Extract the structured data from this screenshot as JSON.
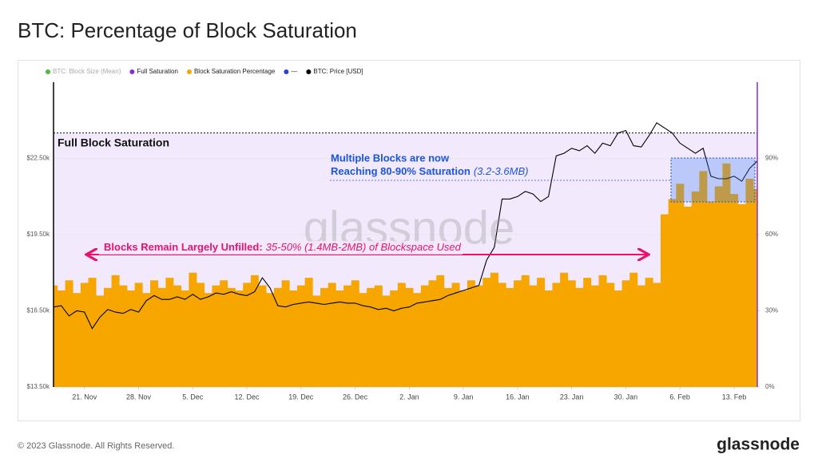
{
  "header": {
    "title": "BTC: Percentage of Block Saturation"
  },
  "footer": {
    "copyright": "© 2023 Glassnode. All Rights Reserved.",
    "logo": "glassnode"
  },
  "chart_data": {
    "type": "bar-line",
    "watermark": "glassnode",
    "legend": [
      {
        "name": "BTC: Block Size (Mean)",
        "color": "#4cbb3a",
        "muted": true
      },
      {
        "name": "Full Saturation",
        "color": "#8a2be2"
      },
      {
        "name": "Block Saturation Percentage",
        "color": "#f7a600"
      },
      {
        "name": "—",
        "color": "#2d3fd3"
      },
      {
        "name": "BTC: Price [USD]",
        "color": "#000000"
      }
    ],
    "xlim": [
      0,
      91
    ],
    "xticks": [
      {
        "value": 4,
        "label": "21. Nov"
      },
      {
        "value": 11,
        "label": "28. Nov"
      },
      {
        "value": 18,
        "label": "5. Dec"
      },
      {
        "value": 25,
        "label": "12. Dec"
      },
      {
        "value": 32,
        "label": "19. Dec"
      },
      {
        "value": 39,
        "label": "26. Dec"
      },
      {
        "value": 46,
        "label": "2. Jan"
      },
      {
        "value": 53,
        "label": "9. Jan"
      },
      {
        "value": 60,
        "label": "16. Jan"
      },
      {
        "value": 67,
        "label": "23. Jan"
      },
      {
        "value": 74,
        "label": "30. Jan"
      },
      {
        "value": 81,
        "label": "6. Feb"
      },
      {
        "value": 88,
        "label": "13. Feb"
      }
    ],
    "ylim": [
      13500,
      25500
    ],
    "yticks": [
      {
        "value": 13500,
        "label": "$13.50k"
      },
      {
        "value": 16500,
        "label": "$16.50k"
      },
      {
        "value": 19500,
        "label": "$19.50k"
      },
      {
        "value": 22500,
        "label": "$22.50k"
      }
    ],
    "y2lim": [
      0,
      120
    ],
    "y2ticks": [
      {
        "value": 0,
        "label": "0%"
      },
      {
        "value": 30,
        "label": "30%"
      },
      {
        "value": 60,
        "label": "60%"
      },
      {
        "value": 90,
        "label": "90%"
      }
    ],
    "grid": true,
    "x": [
      0,
      1,
      2,
      3,
      4,
      5,
      6,
      7,
      8,
      9,
      10,
      11,
      12,
      13,
      14,
      15,
      16,
      17,
      18,
      19,
      20,
      21,
      22,
      23,
      24,
      25,
      26,
      27,
      28,
      29,
      30,
      31,
      32,
      33,
      34,
      35,
      36,
      37,
      38,
      39,
      40,
      41,
      42,
      43,
      44,
      45,
      46,
      47,
      48,
      49,
      50,
      51,
      52,
      53,
      54,
      55,
      56,
      57,
      58,
      59,
      60,
      61,
      62,
      63,
      64,
      65,
      66,
      67,
      68,
      69,
      70,
      71,
      72,
      73,
      74,
      75,
      76,
      77,
      78,
      79,
      80,
      81,
      82,
      83,
      84,
      85,
      86,
      87,
      88,
      89,
      90,
      91
    ],
    "saturation": {
      "color": "#f7a600",
      "axis": "y2",
      "values": [
        40,
        38,
        42,
        37,
        41,
        43,
        36,
        39,
        44,
        40,
        38,
        41,
        37,
        42,
        39,
        43,
        40,
        38,
        45,
        41,
        37,
        40,
        42,
        39,
        38,
        41,
        44,
        40,
        37,
        39,
        42,
        38,
        40,
        43,
        36,
        39,
        41,
        38,
        40,
        42,
        37,
        39,
        40,
        36,
        38,
        41,
        39,
        37,
        40,
        42,
        44,
        39,
        41,
        38,
        42,
        40,
        43,
        45,
        41,
        39,
        42,
        44,
        40,
        43,
        38,
        41,
        45,
        42,
        39,
        43,
        40,
        44,
        41,
        38,
        42,
        45,
        40,
        43,
        41,
        68,
        74,
        80,
        71,
        77,
        85,
        73,
        79,
        88,
        76,
        72,
        82,
        78
      ]
    },
    "price": {
      "color": "#000000",
      "values": [
        16650,
        16700,
        16300,
        16500,
        16450,
        15800,
        16250,
        16550,
        16450,
        16400,
        16550,
        16450,
        16900,
        17100,
        16950,
        16950,
        17050,
        16950,
        17150,
        16950,
        17050,
        17200,
        17150,
        17250,
        17150,
        17100,
        17250,
        17800,
        17400,
        16700,
        16650,
        16750,
        16800,
        16850,
        16800,
        16750,
        16800,
        16850,
        16800,
        16800,
        16700,
        16650,
        16550,
        16600,
        16500,
        16600,
        16650,
        16800,
        16850,
        16900,
        16950,
        17100,
        17200,
        17300,
        17400,
        17500,
        18500,
        19000,
        20900,
        20900,
        21000,
        21200,
        21100,
        20800,
        21000,
        22600,
        22700,
        22900,
        22800,
        23000,
        22700,
        23100,
        23000,
        23500,
        23600,
        23000,
        22950,
        23400,
        23900,
        23700,
        23500,
        23100,
        22900,
        22700,
        22900,
        21800,
        21700,
        21700,
        21800,
        21600,
        22100,
        22400
      ]
    },
    "full_saturation": {
      "value": 100,
      "color": "#8a2be2",
      "axis": "y2"
    },
    "annotations": {
      "full_saturation": "Full Block Saturation",
      "multiple_line1": "Multiple Blocks are now",
      "multiple_line2": "Reaching 80-90% Saturation",
      "multiple_note": "(3.2-3.6MB)",
      "unfilled_bold": "Blocks Remain Largely Unfilled:",
      "unfilled_note": "35-50% (1.4MB-2MB) of Blockspace Used"
    }
  }
}
